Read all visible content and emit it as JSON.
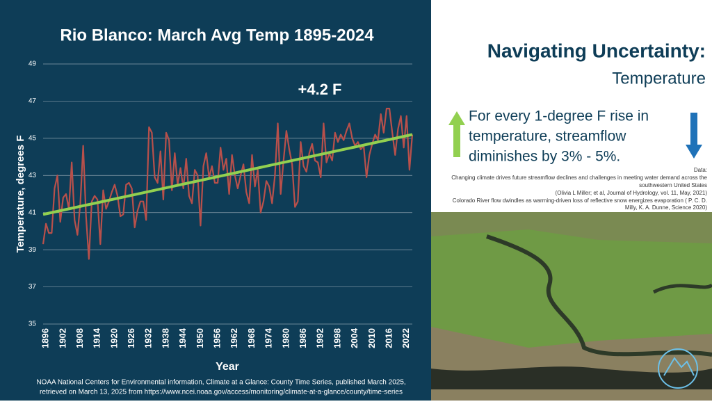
{
  "chart_data": {
    "type": "line",
    "title": "Rio Blanco: March Avg Temp 1895-2024",
    "xlabel": "Year",
    "ylabel": "Temperature, degrees F",
    "annotation": "+4.2 F",
    "x": [
      1895,
      1896,
      1897,
      1898,
      1899,
      1900,
      1901,
      1902,
      1903,
      1904,
      1905,
      1906,
      1907,
      1908,
      1909,
      1910,
      1911,
      1912,
      1913,
      1914,
      1915,
      1916,
      1917,
      1918,
      1919,
      1920,
      1921,
      1922,
      1923,
      1924,
      1925,
      1926,
      1927,
      1928,
      1929,
      1930,
      1931,
      1932,
      1933,
      1934,
      1935,
      1936,
      1937,
      1938,
      1939,
      1940,
      1941,
      1942,
      1943,
      1944,
      1945,
      1946,
      1947,
      1948,
      1949,
      1950,
      1951,
      1952,
      1953,
      1954,
      1955,
      1956,
      1957,
      1958,
      1959,
      1960,
      1961,
      1962,
      1963,
      1964,
      1965,
      1966,
      1967,
      1968,
      1969,
      1970,
      1971,
      1972,
      1973,
      1974,
      1975,
      1976,
      1977,
      1978,
      1979,
      1980,
      1981,
      1982,
      1983,
      1984,
      1985,
      1986,
      1987,
      1988,
      1989,
      1990,
      1991,
      1992,
      1993,
      1994,
      1995,
      1996,
      1997,
      1998,
      1999,
      2000,
      2001,
      2002,
      2003,
      2004,
      2005,
      2006,
      2007,
      2008,
      2009,
      2010,
      2011,
      2012,
      2013,
      2014,
      2015,
      2016,
      2017,
      2018,
      2019,
      2020,
      2021,
      2022,
      2023,
      2024
    ],
    "values": [
      39.3,
      40.4,
      39.9,
      39.9,
      42.3,
      43.0,
      40.5,
      41.8,
      42.0,
      41.2,
      43.7,
      40.6,
      39.8,
      41.5,
      44.6,
      40.8,
      38.5,
      41.6,
      41.9,
      41.7,
      39.3,
      42.2,
      41.2,
      41.6,
      42.1,
      42.5,
      41.9,
      40.8,
      40.9,
      42.5,
      42.6,
      42.3,
      40.2,
      41.1,
      41.6,
      41.6,
      40.6,
      45.6,
      45.3,
      42.9,
      42.6,
      44.3,
      41.7,
      45.3,
      44.9,
      42.2,
      44.2,
      42.5,
      43.4,
      42.3,
      43.9,
      41.9,
      41.5,
      43.3,
      43.0,
      40.3,
      43.5,
      44.2,
      42.9,
      43.5,
      42.6,
      42.6,
      44.5,
      43.3,
      43.9,
      42.0,
      44.1,
      43.0,
      42.3,
      43.0,
      43.6,
      42.1,
      41.5,
      44.1,
      42.4,
      43.3,
      41.0,
      41.6,
      42.7,
      42.4,
      41.5,
      43.0,
      45.8,
      42.0,
      43.8,
      45.4,
      44.4,
      43.6,
      41.3,
      41.6,
      44.8,
      43.5,
      43.2,
      44.2,
      44.7,
      43.8,
      43.7,
      42.9,
      45.8,
      43.7,
      44.2,
      43.8,
      45.3,
      44.8,
      45.2,
      44.9,
      45.4,
      45.8,
      45.0,
      44.6,
      44.8,
      44.4,
      44.6,
      42.9,
      44.1,
      44.7,
      45.2,
      44.9,
      46.3,
      45.3,
      46.6,
      46.6,
      45.3,
      44.1,
      45.5,
      46.2,
      44.5,
      46.2,
      43.3,
      45.2
    ],
    "color": "#b8504b",
    "trend": {
      "x": [
        1895,
        2024
      ],
      "values": [
        40.9,
        45.2
      ],
      "color": "#92d050"
    },
    "xlim": [
      1895,
      2024
    ],
    "xticks": [
      1896,
      1902,
      1908,
      1914,
      1920,
      1926,
      1932,
      1938,
      1944,
      1950,
      1956,
      1962,
      1968,
      1974,
      1980,
      1986,
      1992,
      1998,
      2004,
      2010,
      2016,
      2022
    ],
    "ylim": [
      35,
      49
    ],
    "yticks": [
      35,
      37,
      39,
      41,
      43,
      45,
      47,
      49
    ],
    "grid": true,
    "source": [
      "NOAA National Centers for Environmental information, Climate at a Glance: County Time Series, published March 2025,",
      "retrieved on March 13, 2025 from https://www.ncei.noaa.gov/access/monitoring/climate-at-a-glance/county/time-series"
    ]
  },
  "heading": {
    "title": "Navigating Uncertainty:",
    "subtitle": "Temperature"
  },
  "statement": [
    "For every 1-degree F rise in",
    "temperature, streamflow",
    "diminishes by 3% - 5%."
  ],
  "citations": [
    "Data:",
    "Changing climate drives future streamflow declines and challenges in meeting water demand across the",
    "southwestern United States",
    "(Olivia L Miller; et al, Journal of Hydrology, vol. 11, May, 2021)",
    "Colorado River flow dwindles as warming-driven loss of reflective snow energizes evaporation ( P. C. D.",
    "Milly, K. A. Dunne, Science 2020)"
  ]
}
